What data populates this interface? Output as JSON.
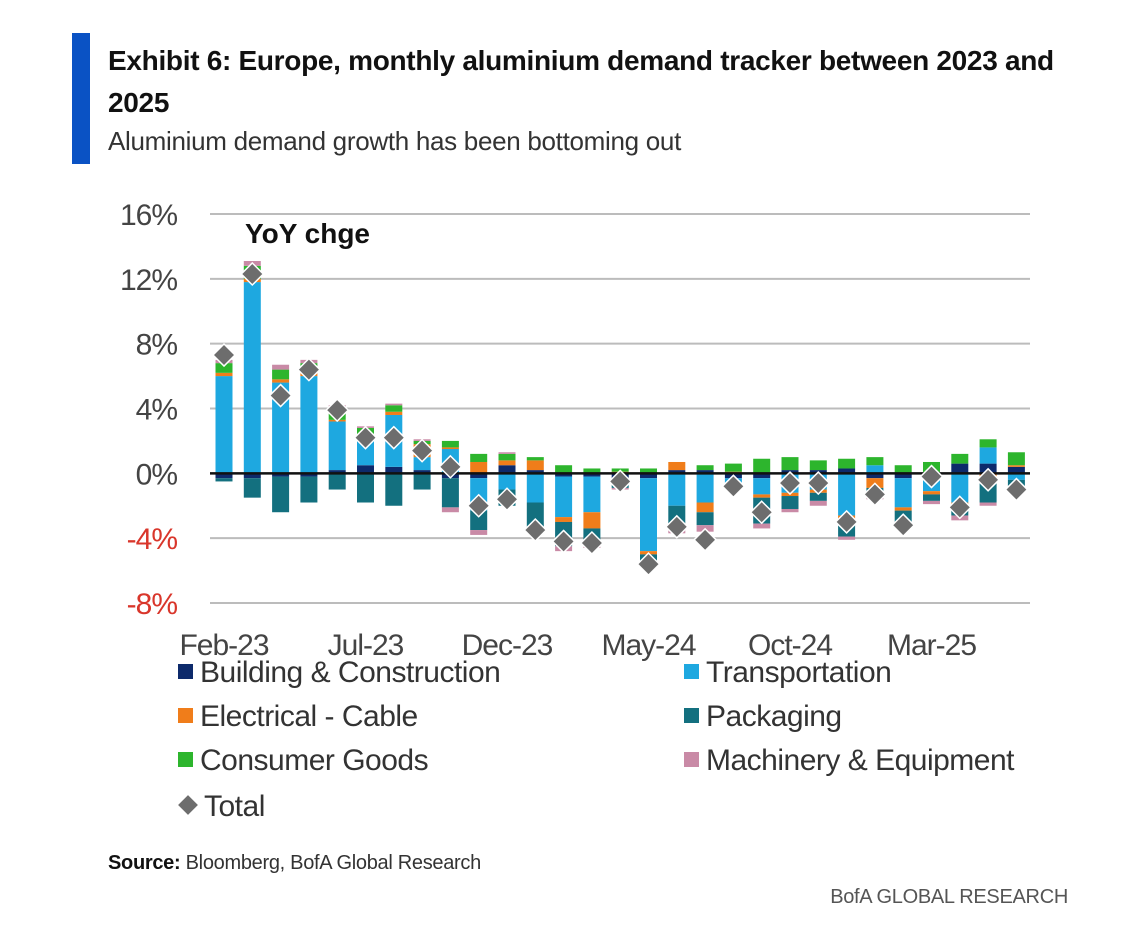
{
  "header": {
    "title": "Exhibit 6: Europe, monthly aluminium demand tracker between 2023 and 2025",
    "subtitle": "Aluminium demand growth has been bottoming out"
  },
  "footer": {
    "source_label": "Source:",
    "source_text": " Bloomberg, BofA Global Research",
    "brand": "BofA GLOBAL RESEARCH"
  },
  "colors": {
    "accent": "#0a52c4",
    "building": "#0d2a6b",
    "transport": "#1ea8e0",
    "electrical": "#f07d1a",
    "packaging": "#13707f",
    "consumer": "#2db52d",
    "machinery": "#c98aa6",
    "total": "#6d6d6d",
    "grid": "#bcbcbc",
    "negative_tick": "#d9362b"
  },
  "chart_data": {
    "type": "bar",
    "stacked": true,
    "title": "Exhibit 6: Europe, monthly aluminium demand tracker between 2023 and 2025",
    "annotation": "YoY chge",
    "ylim": [
      -8,
      16
    ],
    "yticks": [
      "16%",
      "12%",
      "8%",
      "4%",
      "0%",
      "-4%",
      "-8%"
    ],
    "xticks": [
      "Feb-23",
      "Jul-23",
      "Dec-23",
      "May-24",
      "Oct-24",
      "Mar-25"
    ],
    "legend_position": "bottom",
    "categories": [
      "Feb-23",
      "Mar-23",
      "Apr-23",
      "May-23",
      "Jun-23",
      "Jul-23",
      "Aug-23",
      "Sep-23",
      "Oct-23",
      "Nov-23",
      "Dec-23",
      "Jan-24",
      "Feb-24",
      "Mar-24",
      "Apr-24",
      "May-24",
      "Jun-24",
      "Jul-24",
      "Aug-24",
      "Sep-24",
      "Oct-24",
      "Nov-24",
      "Dec-24",
      "Jan-25",
      "Feb-25",
      "Mar-25",
      "Apr-25",
      "May-25",
      "Jun-25"
    ],
    "series": [
      {
        "name": "Building & Construction",
        "values": [
          -0.3,
          -0.3,
          -0.2,
          -0.2,
          0.2,
          0.5,
          0.4,
          0.2,
          -0.3,
          -0.3,
          0.5,
          0.2,
          -0.2,
          -0.2,
          -0.3,
          -0.3,
          0.2,
          0.2,
          -0.3,
          -0.3,
          0.2,
          0.2,
          0.3,
          -0.3,
          -0.3,
          -0.3,
          0.6,
          0.6,
          0.4
        ]
      },
      {
        "name": "Transportation",
        "values": [
          6.0,
          11.8,
          5.6,
          6.0,
          3.0,
          1.5,
          3.2,
          0.8,
          1.5,
          -2.0,
          -1.0,
          -1.8,
          -2.5,
          -2.2,
          -0.4,
          -4.5,
          -2.0,
          -1.8,
          -0.4,
          -1.0,
          -1.2,
          -1.0,
          -2.6,
          0.5,
          -1.8,
          -0.8,
          -1.8,
          1.0,
          -0.4
        ]
      },
      {
        "name": "Electrical - Cable",
        "values": [
          0.2,
          0.2,
          0.2,
          0.2,
          0.1,
          0.1,
          0.2,
          0.8,
          0.1,
          0.7,
          0.3,
          0.6,
          -0.3,
          -1.0,
          0.1,
          -0.2,
          0.5,
          -0.6,
          0.1,
          -0.2,
          -0.2,
          -0.2,
          -0.3,
          -0.6,
          -0.2,
          -0.2,
          -0.2,
          -0.6,
          0.1
        ]
      },
      {
        "name": "Packaging",
        "values": [
          -0.2,
          -1.2,
          -2.2,
          -1.6,
          -1.0,
          -1.8,
          -2.0,
          -1.0,
          -1.8,
          -1.2,
          -1.0,
          -1.6,
          -1.5,
          -1.0,
          -0.2,
          -0.4,
          -1.2,
          -0.8,
          -0.2,
          -1.6,
          -0.8,
          -0.5,
          -1.0,
          -0.4,
          -0.8,
          -0.4,
          -0.6,
          -1.2,
          -0.4
        ]
      },
      {
        "name": "Consumer Goods",
        "values": [
          0.6,
          0.8,
          0.6,
          0.6,
          0.8,
          0.7,
          0.4,
          0.2,
          0.4,
          0.5,
          0.4,
          0.2,
          0.5,
          0.3,
          0.2,
          0.3,
          -0.2,
          0.3,
          0.5,
          0.9,
          0.8,
          0.6,
          0.6,
          0.5,
          0.5,
          0.7,
          0.6,
          0.5,
          0.8
        ]
      },
      {
        "name": "Machinery & Equipment",
        "values": [
          0.2,
          0.3,
          0.3,
          0.2,
          0.1,
          0.1,
          0.1,
          0.1,
          -0.3,
          -0.3,
          0.1,
          -0.3,
          -0.3,
          -0.2,
          -0.1,
          -0.2,
          -0.3,
          -0.4,
          -0.1,
          -0.3,
          -0.2,
          -0.3,
          -0.2,
          -0.3,
          -0.2,
          -0.2,
          -0.3,
          -0.2,
          -0.3
        ]
      },
      {
        "name": "Total",
        "marker": "diamond",
        "values": [
          7.3,
          12.3,
          4.8,
          6.4,
          3.9,
          2.2,
          2.2,
          1.4,
          0.4,
          -2.0,
          -1.6,
          -3.5,
          -4.2,
          -4.3,
          -0.5,
          -5.6,
          -3.3,
          -4.1,
          -0.8,
          -2.4,
          -0.6,
          -0.6,
          -3.0,
          -1.3,
          -3.2,
          -0.2,
          -2.1,
          -0.4,
          -1.0
        ]
      }
    ]
  }
}
